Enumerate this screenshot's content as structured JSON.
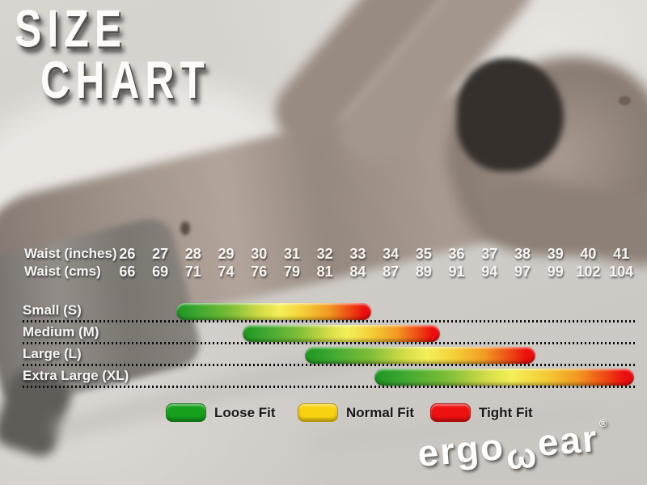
{
  "title": {
    "line1": "SIZE",
    "line2": "CHART"
  },
  "measure_rows": [
    {
      "label": "Waist (inches)",
      "values": [
        26,
        27,
        28,
        29,
        30,
        31,
        32,
        33,
        34,
        35,
        36,
        37,
        38,
        39,
        40,
        41
      ]
    },
    {
      "label": "Waist (cms)",
      "values": [
        66,
        69,
        71,
        74,
        76,
        79,
        81,
        84,
        87,
        89,
        91,
        94,
        97,
        99,
        102,
        104
      ]
    }
  ],
  "sizes": [
    {
      "label": "Small (S)",
      "from_inches": 27.5,
      "to_inches": 33.4
    },
    {
      "label": "Medium (M)",
      "from_inches": 29.5,
      "to_inches": 35.5
    },
    {
      "label": "Large (L)",
      "from_inches": 31.4,
      "to_inches": 38.4
    },
    {
      "label": "Extra Large (XL)",
      "from_inches": 33.5,
      "to_inches": 41.4
    }
  ],
  "legend": [
    {
      "label": "Loose Fit",
      "color": "#16a01e"
    },
    {
      "label": "Normal Fit",
      "color": "#f8d211"
    },
    {
      "label": "Tight Fit",
      "color": "#ee1111"
    }
  ],
  "brand": {
    "logo_pre": "ergo",
    "logo_w": "ω",
    "logo_post": "ear",
    "registered": "®"
  },
  "colors": {
    "bar_gradient_start": "#1f9422",
    "bar_gradient_mid": "#f3ef58",
    "bar_gradient_end": "#ec0f0f",
    "text_light": "#f7f5f2",
    "text_dark": "#181818",
    "background_sheet": "#cfccc7"
  },
  "chart_data": {
    "type": "bar",
    "subtype": "horizontal-range-gradient",
    "title": "SIZE CHART",
    "x_axis": {
      "label_primary": "Waist (inches)",
      "ticks_primary": [
        26,
        27,
        28,
        29,
        30,
        31,
        32,
        33,
        34,
        35,
        36,
        37,
        38,
        39,
        40,
        41
      ],
      "label_secondary": "Waist (cms)",
      "ticks_secondary": [
        66,
        69,
        71,
        74,
        76,
        79,
        81,
        84,
        87,
        89,
        91,
        94,
        97,
        99,
        102,
        104
      ],
      "range_inches": [
        26,
        41
      ]
    },
    "series": [
      {
        "name": "Small (S)",
        "range_inches": [
          27.5,
          33.4
        ],
        "loose_end": 28,
        "tight_end": 33
      },
      {
        "name": "Medium (M)",
        "range_inches": [
          29.5,
          35.5
        ],
        "loose_end": 30,
        "tight_end": 35
      },
      {
        "name": "Large (L)",
        "range_inches": [
          31.4,
          38.4
        ],
        "loose_end": 32,
        "tight_end": 38
      },
      {
        "name": "Extra Large (XL)",
        "range_inches": [
          33.5,
          41.4
        ],
        "loose_end": 34,
        "tight_end": 41
      }
    ],
    "legend": [
      "Loose Fit",
      "Normal Fit",
      "Tight Fit"
    ],
    "legend_position": "bottom",
    "gradient_meaning": "green = loose fit, yellow = normal fit, red = tight fit",
    "grid": "dotted separators under each size row"
  }
}
